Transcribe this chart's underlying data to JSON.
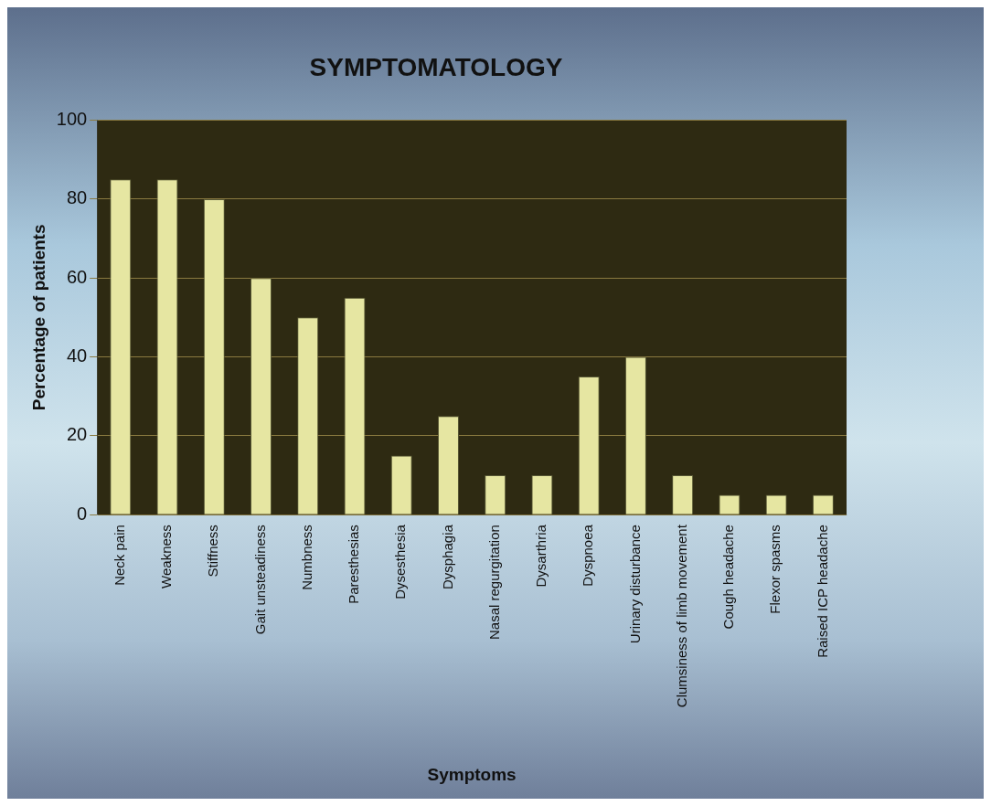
{
  "chart_data": {
    "type": "bar",
    "title": "SYMPTOMATOLOGY",
    "xlabel": "Symptoms",
    "ylabel": "Percentage of patients",
    "categories": [
      "Neck pain",
      "Weakness",
      "Stiffness",
      "Gait unsteadiness",
      "Numbness",
      "Paresthesias",
      "Dysesthesia",
      "Dysphagia",
      "Nasal regurgitation",
      "Dysarthria",
      "Dyspnoea",
      "Urinary disturbance",
      "Clumsiness of limb movement",
      "Cough headache",
      "Flexor spasms",
      "Raised ICP headache"
    ],
    "values": [
      85,
      85,
      80,
      60,
      50,
      55,
      15,
      25,
      10,
      10,
      35,
      40,
      10,
      5,
      5,
      5
    ],
    "color": "#e6e6a2",
    "ylim": [
      0,
      100
    ],
    "yticks": [
      0,
      20,
      40,
      60,
      80,
      100
    ],
    "grid": "y",
    "legend": false
  }
}
